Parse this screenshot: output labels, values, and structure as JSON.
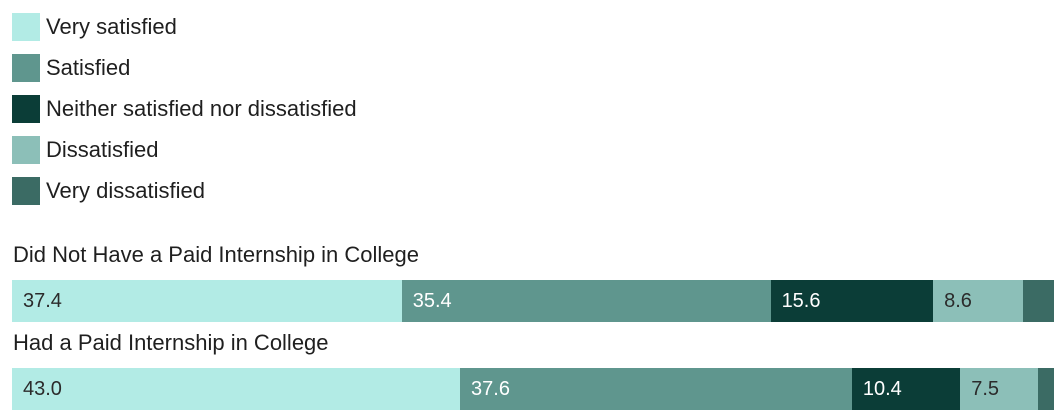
{
  "chart_data": {
    "type": "bar",
    "orientation": "horizontal",
    "stacked": true,
    "legend_position": "top-left",
    "title": "",
    "xlabel": "",
    "ylabel": "",
    "xlim": [
      0,
      100
    ],
    "categories": [
      "Did Not Have a Paid Internship in College",
      "Had a Paid Internship in College"
    ],
    "series": [
      {
        "name": "Very satisfied",
        "color": "#b2ebe5",
        "text_color": "#2b2b2b",
        "values": [
          37.4,
          43.0
        ]
      },
      {
        "name": "Satisfied",
        "color": "#5f968e",
        "text_color": "#ffffff",
        "values": [
          35.4,
          37.6
        ]
      },
      {
        "name": "Neither satisfied nor dissatisfied",
        "color": "#0b3d37",
        "text_color": "#ffffff",
        "values": [
          15.6,
          10.4
        ]
      },
      {
        "name": "Dissatisfied",
        "color": "#8cbfb8",
        "text_color": "#2b2b2b",
        "values": [
          8.6,
          7.5
        ]
      },
      {
        "name": "Very dissatisfied",
        "color": "#3b6b64",
        "text_color": "#ffffff",
        "values": [
          3.0,
          1.5
        ]
      }
    ],
    "value_labels": [
      [
        "37.4",
        "35.4",
        "15.6",
        "8.6",
        ""
      ],
      [
        "43.0",
        "37.6",
        "10.4",
        "7.5",
        ""
      ]
    ]
  }
}
